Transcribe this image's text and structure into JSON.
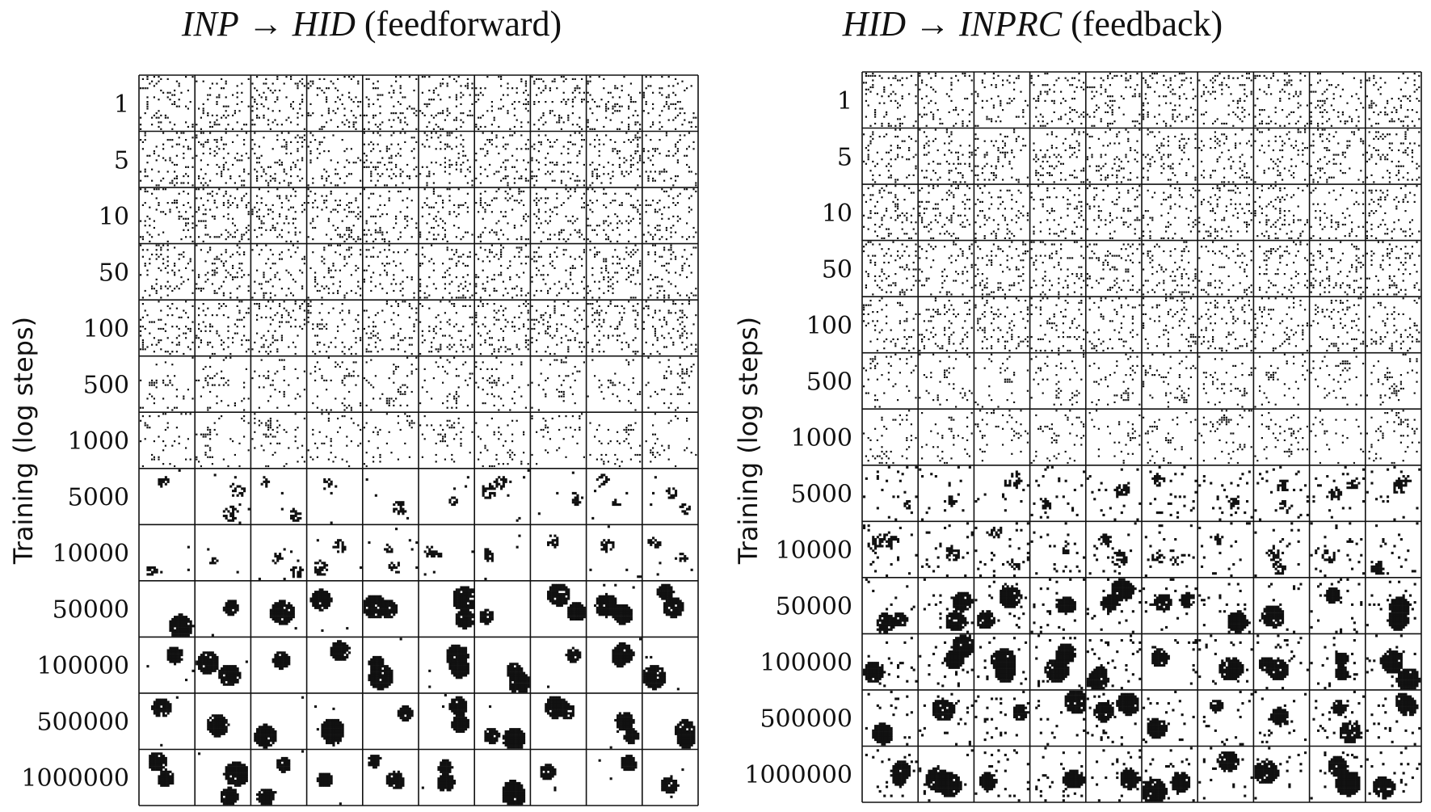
{
  "panels": [
    {
      "id": "feedforward",
      "title": {
        "source": "INP",
        "arrow": " → ",
        "target": "HID",
        "suffix": " (feedforward)"
      },
      "ylabel": "Training (log steps)"
    },
    {
      "id": "feedback",
      "title": {
        "source": "HID",
        "arrow": " → ",
        "target": "INPRC",
        "suffix": " (feedback)"
      },
      "ylabel": "Training (log steps)"
    }
  ],
  "rows": [
    "1",
    "5",
    "10",
    "50",
    "100",
    "500",
    "1000",
    "5000",
    "10000",
    "50000",
    "100000",
    "500000",
    "1000000"
  ],
  "columns_per_row": 10,
  "colors": {
    "ink": "#111111",
    "background": "#ffffff"
  }
}
